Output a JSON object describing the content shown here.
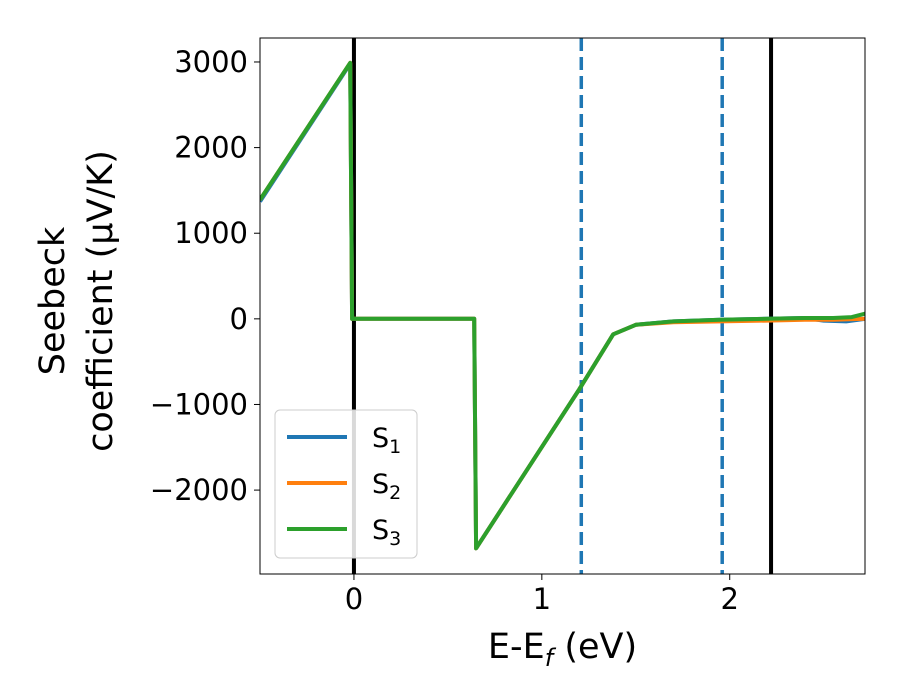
{
  "chart_data": {
    "type": "line",
    "title": "",
    "xlabel": {
      "main": "E-E",
      "sub": "f",
      "rest": " (eV)"
    },
    "ylabel": {
      "line1": "Seebeck",
      "line2": "coefficient  (μV/K)"
    },
    "xlim": [
      -0.5,
      2.72
    ],
    "ylim": [
      -2980,
      3280
    ],
    "xticks": [
      {
        "value": 0,
        "label": "0"
      },
      {
        "value": 1,
        "label": "1"
      },
      {
        "value": 2,
        "label": "2"
      }
    ],
    "yticks": [
      {
        "value": 3000,
        "label": "3000"
      },
      {
        "value": 2000,
        "label": "2000"
      },
      {
        "value": 1000,
        "label": "1000"
      },
      {
        "value": 0,
        "label": "0"
      },
      {
        "value": -1000,
        "label": "−1000"
      },
      {
        "value": -2000,
        "label": "−2000"
      }
    ],
    "grid": false,
    "legend_position": "lower-left",
    "series": [
      {
        "name": "S",
        "sub": "1",
        "color": "#1f77b4",
        "points": [
          [
            -0.5,
            1370
          ],
          [
            -0.02,
            2980
          ],
          [
            -0.01,
            0
          ],
          [
            0.64,
            0
          ],
          [
            0.65,
            -2680
          ],
          [
            1.2,
            -820
          ],
          [
            1.38,
            -180
          ],
          [
            1.5,
            -70
          ],
          [
            1.7,
            -30
          ],
          [
            1.95,
            -10
          ],
          [
            2.2,
            0
          ],
          [
            2.4,
            10
          ],
          [
            2.5,
            -20
          ],
          [
            2.62,
            -30
          ],
          [
            2.72,
            0
          ]
        ]
      },
      {
        "name": "S",
        "sub": "2",
        "color": "#ff7f0e",
        "points": [
          [
            -0.5,
            1390
          ],
          [
            -0.02,
            2990
          ],
          [
            -0.01,
            0
          ],
          [
            0.64,
            0
          ],
          [
            0.65,
            -2680
          ],
          [
            1.2,
            -820
          ],
          [
            1.38,
            -180
          ],
          [
            1.5,
            -70
          ],
          [
            1.7,
            -40
          ],
          [
            1.95,
            -30
          ],
          [
            2.2,
            -20
          ],
          [
            2.4,
            -10
          ],
          [
            2.55,
            -10
          ],
          [
            2.72,
            0
          ]
        ]
      },
      {
        "name": "S",
        "sub": "3",
        "color": "#2ca02c",
        "points": [
          [
            -0.5,
            1390
          ],
          [
            -0.02,
            2990
          ],
          [
            -0.01,
            0
          ],
          [
            0.64,
            0
          ],
          [
            0.65,
            -2680
          ],
          [
            1.2,
            -820
          ],
          [
            1.38,
            -180
          ],
          [
            1.5,
            -70
          ],
          [
            1.7,
            -30
          ],
          [
            1.95,
            -10
          ],
          [
            2.2,
            0
          ],
          [
            2.4,
            10
          ],
          [
            2.55,
            10
          ],
          [
            2.65,
            20
          ],
          [
            2.72,
            60
          ]
        ]
      }
    ],
    "vlines": [
      {
        "x": 0.0,
        "color": "#000000",
        "style": "solid"
      },
      {
        "x": 2.22,
        "color": "#000000",
        "style": "solid"
      },
      {
        "x": 1.21,
        "color": "#1f77b4",
        "style": "dashed"
      },
      {
        "x": 1.96,
        "color": "#1f77b4",
        "style": "dashed"
      }
    ]
  }
}
